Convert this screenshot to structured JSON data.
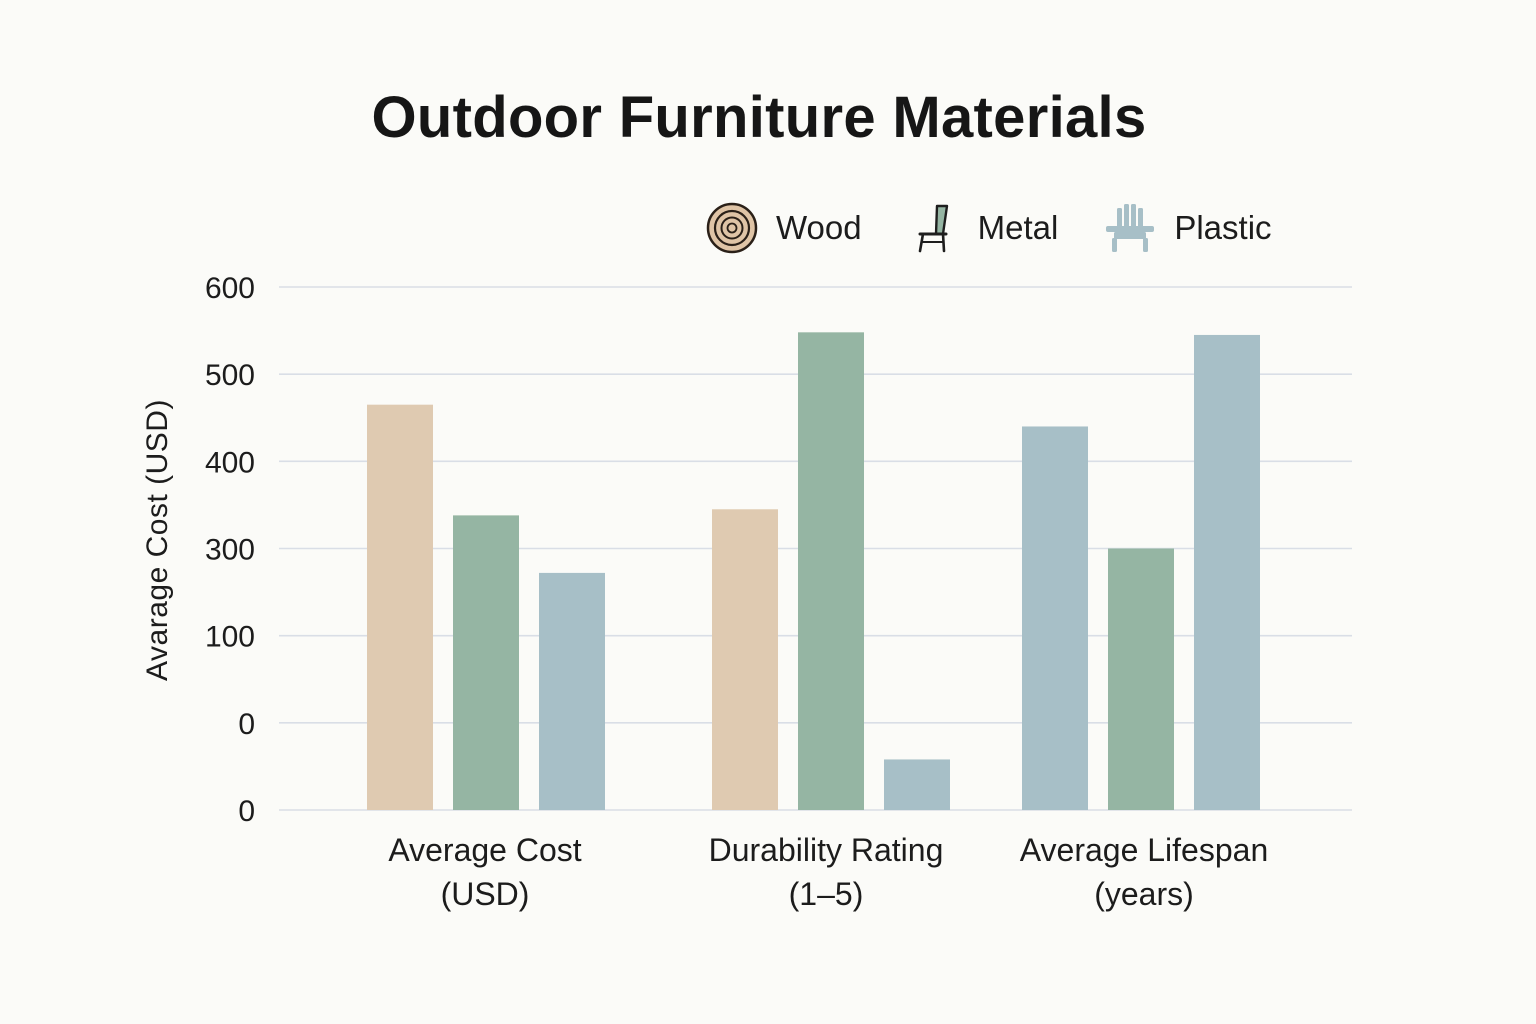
{
  "chart_data": {
    "type": "bar",
    "title": "Outdoor Furniture Materials",
    "xlabel": "",
    "ylabel": "Avarage Cost  (USD)",
    "y_tick_labels": [
      "600",
      "500",
      "400",
      "300",
      "100",
      "0",
      "0"
    ],
    "ylim": [
      0,
      600
    ],
    "grid": true,
    "legend_position": "top-right",
    "categories": [
      {
        "line1": "Average Cost",
        "line2": "(USD)"
      },
      {
        "line1": "Durability Rating",
        "line2": "(1–5)"
      },
      {
        "line1": "Average Lifespan",
        "line2": "(years)"
      }
    ],
    "series": [
      {
        "name": "Wood",
        "icon": "wood-rings-icon",
        "color": "#dfcab1",
        "values": [
          465,
          345,
          440
        ]
      },
      {
        "name": "Metal",
        "icon": "chair-icon",
        "color": "#95b5a3",
        "values": [
          338,
          548,
          300
        ]
      },
      {
        "name": "Plastic",
        "icon": "adirondack-chair-icon",
        "color": "#a7bfc7",
        "values": [
          272,
          58,
          545
        ]
      }
    ],
    "bar_colors": [
      [
        "#dfcab1",
        "#95b5a3",
        "#a7bfc7"
      ],
      [
        "#dfcab1",
        "#95b5a3",
        "#a7bfc7"
      ],
      [
        "#a7bfc7",
        "#95b5a3",
        "#a7bfc7"
      ]
    ],
    "gridline_color": "#d9dee6",
    "axis_text_color": "#1c1c1c"
  }
}
